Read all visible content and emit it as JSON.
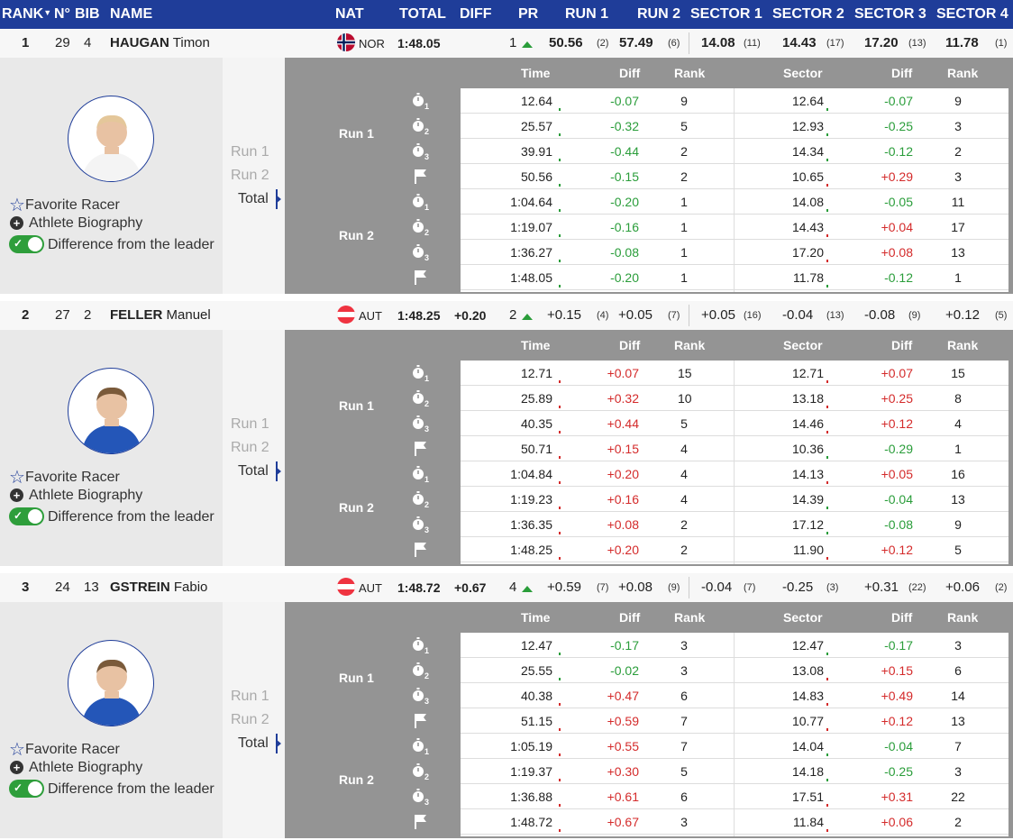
{
  "header": {
    "rank": "RANK",
    "no": "N°",
    "bib": "BIB",
    "name": "NAME",
    "nat": "NAT",
    "total": "TOTAL",
    "diff": "DIFF",
    "pr": "PR",
    "run1": "RUN 1",
    "run2": "RUN 2",
    "sector1": "SECTOR 1",
    "sector2": "SECTOR 2",
    "sector3": "SECTOR 3",
    "sector4": "SECTOR 4"
  },
  "detail_labels": {
    "time": "Time",
    "diff": "Diff",
    "rank": "Rank",
    "sector": "Sector",
    "run1": "Run 1",
    "run2": "Run 2",
    "total": "Total",
    "favorite": "Favorite Racer",
    "biography": "Athlete Biography",
    "difference": "Difference from the leader"
  },
  "colors": {
    "header_bg": "#1f3d99",
    "green": "#2a9d3a",
    "red": "#d42b2b",
    "grey_panel": "#949494"
  },
  "racers": [
    {
      "rank": "1",
      "no": "29",
      "bib": "4",
      "surname": "HAUGAN",
      "firstname": "Timon",
      "nat": "NOR",
      "total": "1:48.05",
      "diff": "",
      "pr": "1",
      "run1": "50.56",
      "run1_rank": "(2)",
      "run2": "57.49",
      "run2_rank": "(6)",
      "s1": "14.08",
      "s1_rank": "(11)",
      "s2": "14.43",
      "s2_rank": "(17)",
      "s3": "17.20",
      "s3_rank": "(13)",
      "s4": "11.78",
      "s4_rank": "(1)",
      "rows": [
        {
          "time": "12.64",
          "diff": "-0.07",
          "rank": "9",
          "sector": "12.64",
          "sdiff": "-0.07",
          "srank": "9"
        },
        {
          "time": "25.57",
          "diff": "-0.32",
          "rank": "5",
          "sector": "12.93",
          "sdiff": "-0.25",
          "srank": "3"
        },
        {
          "time": "39.91",
          "diff": "-0.44",
          "rank": "2",
          "sector": "14.34",
          "sdiff": "-0.12",
          "srank": "2"
        },
        {
          "time": "50.56",
          "diff": "-0.15",
          "rank": "2",
          "sector": "10.65",
          "sdiff": "+0.29",
          "srank": "3"
        },
        {
          "time": "1:04.64",
          "diff": "-0.20",
          "rank": "1",
          "sector": "14.08",
          "sdiff": "-0.05",
          "srank": "11"
        },
        {
          "time": "1:19.07",
          "diff": "-0.16",
          "rank": "1",
          "sector": "14.43",
          "sdiff": "+0.04",
          "srank": "17"
        },
        {
          "time": "1:36.27",
          "diff": "-0.08",
          "rank": "1",
          "sector": "17.20",
          "sdiff": "+0.08",
          "srank": "13"
        },
        {
          "time": "1:48.05",
          "diff": "-0.20",
          "rank": "1",
          "sector": "11.78",
          "sdiff": "-0.12",
          "srank": "1"
        }
      ]
    },
    {
      "rank": "2",
      "no": "27",
      "bib": "2",
      "surname": "FELLER",
      "firstname": "Manuel",
      "nat": "AUT",
      "total": "1:48.25",
      "diff": "+0.20",
      "pr": "2",
      "run1": "+0.15",
      "run1_rank": "(4)",
      "run2": "+0.05",
      "run2_rank": "(7)",
      "s1": "+0.05",
      "s1_rank": "(16)",
      "s2": "-0.04",
      "s2_rank": "(13)",
      "s3": "-0.08",
      "s3_rank": "(9)",
      "s4": "+0.12",
      "s4_rank": "(5)",
      "rows": [
        {
          "time": "12.71",
          "diff": "+0.07",
          "rank": "15",
          "sector": "12.71",
          "sdiff": "+0.07",
          "srank": "15"
        },
        {
          "time": "25.89",
          "diff": "+0.32",
          "rank": "10",
          "sector": "13.18",
          "sdiff": "+0.25",
          "srank": "8"
        },
        {
          "time": "40.35",
          "diff": "+0.44",
          "rank": "5",
          "sector": "14.46",
          "sdiff": "+0.12",
          "srank": "4"
        },
        {
          "time": "50.71",
          "diff": "+0.15",
          "rank": "4",
          "sector": "10.36",
          "sdiff": "-0.29",
          "srank": "1"
        },
        {
          "time": "1:04.84",
          "diff": "+0.20",
          "rank": "4",
          "sector": "14.13",
          "sdiff": "+0.05",
          "srank": "16"
        },
        {
          "time": "1:19.23",
          "diff": "+0.16",
          "rank": "4",
          "sector": "14.39",
          "sdiff": "-0.04",
          "srank": "13"
        },
        {
          "time": "1:36.35",
          "diff": "+0.08",
          "rank": "2",
          "sector": "17.12",
          "sdiff": "-0.08",
          "srank": "9"
        },
        {
          "time": "1:48.25",
          "diff": "+0.20",
          "rank": "2",
          "sector": "11.90",
          "sdiff": "+0.12",
          "srank": "5"
        }
      ]
    },
    {
      "rank": "3",
      "no": "24",
      "bib": "13",
      "surname": "GSTREIN",
      "firstname": "Fabio",
      "nat": "AUT",
      "total": "1:48.72",
      "diff": "+0.67",
      "pr": "4",
      "run1": "+0.59",
      "run1_rank": "(7)",
      "run2": "+0.08",
      "run2_rank": "(9)",
      "s1": "-0.04",
      "s1_rank": "(7)",
      "s2": "-0.25",
      "s2_rank": "(3)",
      "s3": "+0.31",
      "s3_rank": "(22)",
      "s4": "+0.06",
      "s4_rank": "(2)",
      "rows": [
        {
          "time": "12.47",
          "diff": "-0.17",
          "rank": "3",
          "sector": "12.47",
          "sdiff": "-0.17",
          "srank": "3"
        },
        {
          "time": "25.55",
          "diff": "-0.02",
          "rank": "3",
          "sector": "13.08",
          "sdiff": "+0.15",
          "srank": "6"
        },
        {
          "time": "40.38",
          "diff": "+0.47",
          "rank": "6",
          "sector": "14.83",
          "sdiff": "+0.49",
          "srank": "14"
        },
        {
          "time": "51.15",
          "diff": "+0.59",
          "rank": "7",
          "sector": "10.77",
          "sdiff": "+0.12",
          "srank": "13"
        },
        {
          "time": "1:05.19",
          "diff": "+0.55",
          "rank": "7",
          "sector": "14.04",
          "sdiff": "-0.04",
          "srank": "7"
        },
        {
          "time": "1:19.37",
          "diff": "+0.30",
          "rank": "5",
          "sector": "14.18",
          "sdiff": "-0.25",
          "srank": "3"
        },
        {
          "time": "1:36.88",
          "diff": "+0.61",
          "rank": "6",
          "sector": "17.51",
          "sdiff": "+0.31",
          "srank": "22"
        },
        {
          "time": "1:48.72",
          "diff": "+0.67",
          "rank": "3",
          "sector": "11.84",
          "sdiff": "+0.06",
          "srank": "2"
        }
      ]
    }
  ]
}
